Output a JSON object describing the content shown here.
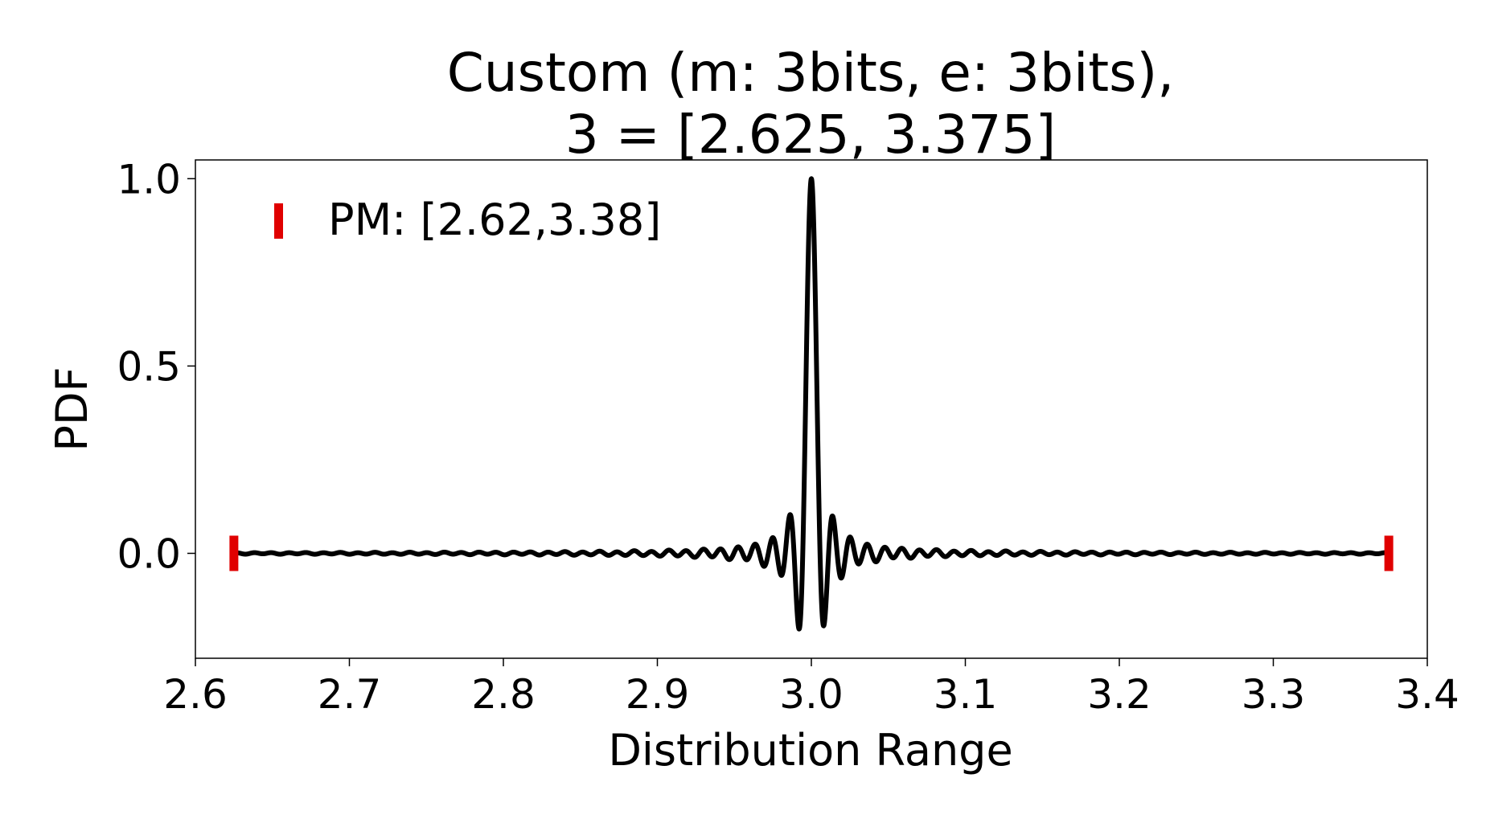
{
  "chart_data": {
    "type": "line",
    "title_line1": "Custom (m: 3bits, e: 3bits),",
    "title_line2": "3 = [2.625, 3.375]",
    "xlabel": "Distribution Range",
    "ylabel": "PDF",
    "xlim": [
      2.6,
      3.4
    ],
    "ylim": [
      -0.28,
      1.05
    ],
    "xticks": [
      "2.6",
      "2.7",
      "2.8",
      "2.9",
      "3.0",
      "3.1",
      "3.2",
      "3.3",
      "3.4"
    ],
    "yticks": [
      "0.0",
      "0.5",
      "1.0"
    ],
    "grid": false,
    "legend_position": "upper-left",
    "series": [
      {
        "color": "#000000",
        "description": "sinc-like PDF centered at 3.0 with peak 1.0 and min about -0.22",
        "center": 3.0,
        "peak": 1.0,
        "x_range": [
          2.625,
          3.375
        ]
      }
    ],
    "markers": {
      "name": "PM: [2.62,3.38]",
      "color": "#e00000",
      "x": [
        2.625,
        3.375
      ],
      "y": 0.0
    }
  }
}
